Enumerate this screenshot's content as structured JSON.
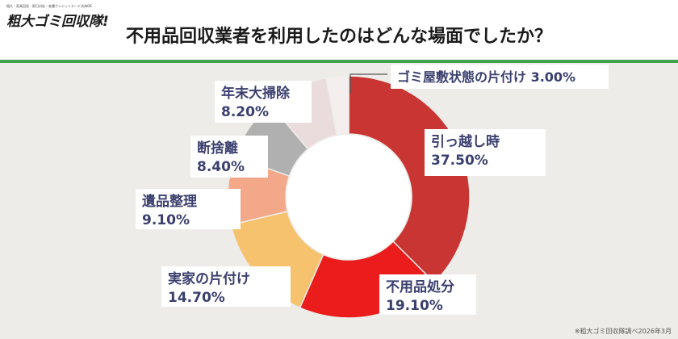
{
  "header": {
    "logo_small": "粗大・家具回収・即日対応・各種クレジットカード決済OK",
    "logo_main": "粗大ゴミ回収隊!",
    "title": "不用品回収業者を利用したのはどんな場面でしたか？"
  },
  "footnote": "※粗大ゴミ回収隊調べ2026年3月",
  "colors": {
    "header_bg": "#ffffff",
    "accent_rule": "#3fa34d",
    "background": "#eeece8",
    "label_text": "#3a3f6e"
  },
  "chart_data": {
    "type": "pie",
    "donut": true,
    "title": "不用品回収業者を利用したのはどんな場面でしたか？",
    "slices": [
      {
        "label": "引っ越し時",
        "value": 37.5,
        "display": "37.50%",
        "color": "#c93532"
      },
      {
        "label": "不用品処分",
        "value": 19.1,
        "display": "19.10%",
        "color": "#ea1c1c"
      },
      {
        "label": "実家の片付け",
        "value": 14.7,
        "display": "14.70%",
        "color": "#f6c26e"
      },
      {
        "label": "遺品整理",
        "value": 9.1,
        "display": "9.10%",
        "color": "#f3a88a"
      },
      {
        "label": "断捨離",
        "value": 8.4,
        "display": "8.40%",
        "color": "#b0b0b0"
      },
      {
        "label": "年末大掃除",
        "value": 8.2,
        "display": "8.20%",
        "color": "#eadcdc"
      },
      {
        "label": "ゴミ屋敷状態の片付け",
        "value": 3.0,
        "display": "3.00%",
        "color": "#f4eeee"
      }
    ]
  }
}
